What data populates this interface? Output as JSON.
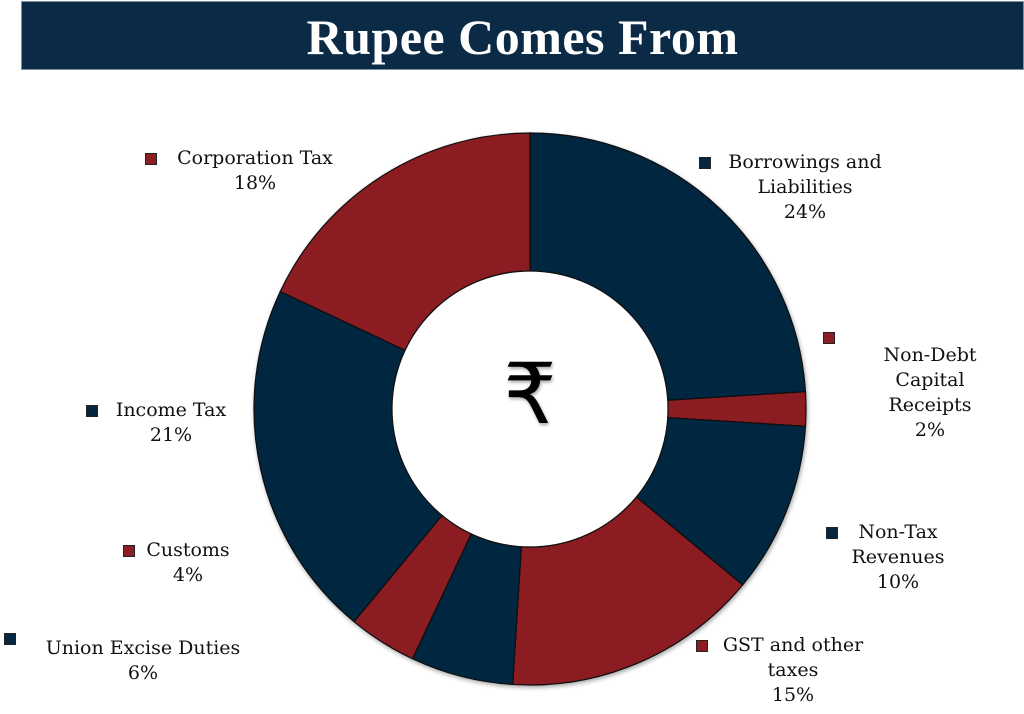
{
  "title": "Rupee Comes From",
  "center_symbol": "₹",
  "colors": {
    "navy": "#062640",
    "red": "#8b1e22",
    "title_bg": "#0a2a45"
  },
  "legend": [
    {
      "name": "Borrowings and Liabilities",
      "line1": "Borrowings and",
      "line2": "Liabilities",
      "pct": "24%",
      "color": "#062640"
    },
    {
      "name": "Non-Debt Capital Receipts",
      "line1": "Non-Debt",
      "line2": "Capital",
      "line3": "Receipts",
      "pct": "2%",
      "color": "#8b1e22"
    },
    {
      "name": "Non-Tax Revenues",
      "line1": "Non-Tax",
      "line2": "Revenues",
      "pct": "10%",
      "color": "#062640"
    },
    {
      "name": "GST and other taxes",
      "line1": "GST and other",
      "line2": "taxes",
      "pct": "15%",
      "color": "#8b1e22"
    },
    {
      "name": "Union Excise Duties",
      "line1": "Union Excise Duties",
      "pct": "6%",
      "color": "#062640"
    },
    {
      "name": "Customs",
      "line1": "Customs",
      "pct": "4%",
      "color": "#8b1e22"
    },
    {
      "name": "Income Tax",
      "line1": "Income Tax",
      "pct": "21%",
      "color": "#062640"
    },
    {
      "name": "Corporation Tax",
      "line1": "Corporation Tax",
      "pct": "18%",
      "color": "#8b1e22"
    }
  ],
  "chart_data": {
    "type": "pie",
    "subtype": "donut",
    "title": "Rupee Comes From",
    "center_label": "₹",
    "categories": [
      "Borrowings and Liabilities",
      "Non-Debt Capital Receipts",
      "Non-Tax Revenues",
      "GST and other taxes",
      "Union Excise Duties",
      "Customs",
      "Income Tax",
      "Corporation Tax"
    ],
    "values": [
      24,
      2,
      10,
      15,
      6,
      4,
      21,
      18
    ],
    "unit": "%",
    "colors": [
      "#062640",
      "#8b1e22",
      "#062640",
      "#8b1e22",
      "#062640",
      "#8b1e22",
      "#062640",
      "#8b1e22"
    ],
    "start_angle": "12 o'clock",
    "direction": "clockwise",
    "legend_position": "around chart (callouts)"
  }
}
